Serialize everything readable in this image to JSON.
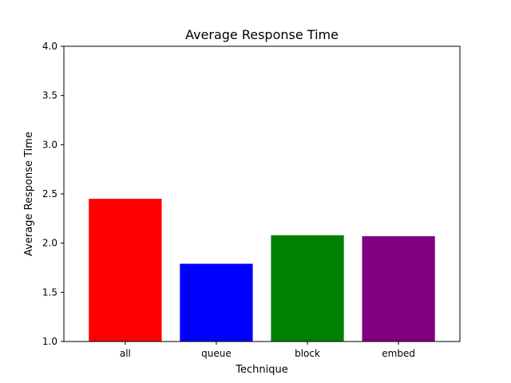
{
  "chart_data": {
    "type": "bar",
    "title": "Average Response Time",
    "xlabel": "Technique",
    "ylabel": "Average Response Time",
    "categories": [
      "all",
      "queue",
      "block",
      "embed"
    ],
    "values": [
      2.45,
      1.79,
      2.08,
      2.07
    ],
    "colors": [
      "#ff0000",
      "#0000ff",
      "#008000",
      "#800080"
    ],
    "ylim": [
      1.0,
      4.0
    ],
    "yticks": [
      1.0,
      1.5,
      2.0,
      2.5,
      3.0,
      3.5,
      4.0
    ],
    "ytick_labels": [
      "1.0",
      "1.5",
      "2.0",
      "2.5",
      "3.0",
      "3.5",
      "4.0"
    ],
    "grid": false,
    "legend": "none"
  }
}
